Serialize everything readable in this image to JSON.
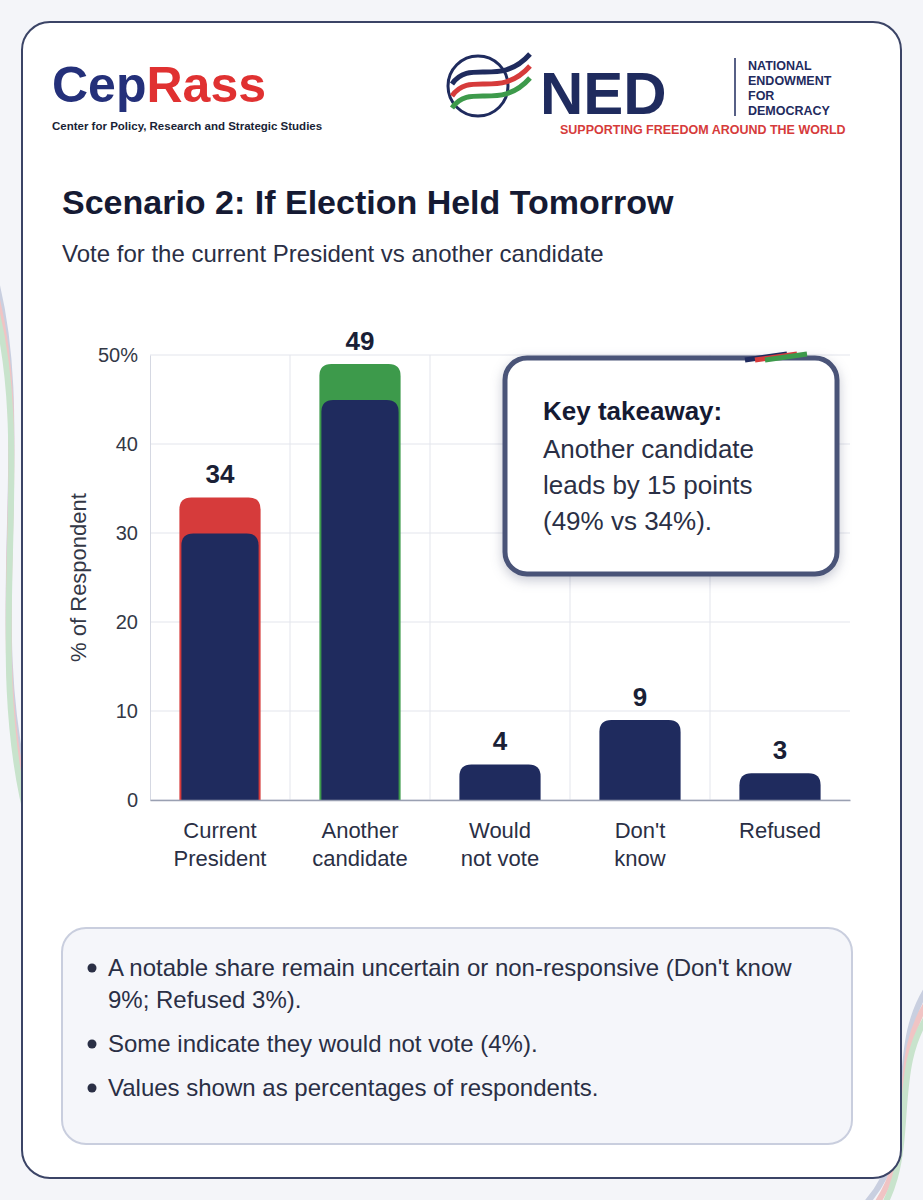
{
  "header": {
    "org_name": "CepRass",
    "org_full_name": "Center for Policy, Research and Strategic Studies",
    "partner_name": "NED",
    "partner_full_name": "NATIONAL ENDOWMENT FOR DEMOCRACY",
    "partner_tagline": "SUPPORTING FREEDOM AROUND THE WORLD"
  },
  "chart_data": {
    "type": "bar",
    "title": "Scenario 2: If Election Held Tomorrow",
    "subtitle": "Vote for the current President vs another candidate",
    "y_label": "% of Respondent",
    "categories": [
      "Current President",
      "Another candidate",
      "Would not vote",
      "Don't know",
      "Refused"
    ],
    "values": [
      34,
      49,
      4,
      9,
      3
    ],
    "colors": [
      "#d63b3b",
      "#3d9a4b",
      "#1f2b5e",
      "#1f2b5e",
      "#1f2b5e"
    ],
    "ylim": [
      0,
      50
    ],
    "yticks": [
      0,
      10,
      20,
      30,
      40,
      {
        "value": 50,
        "label": "50%"
      }
    ],
    "grid": true,
    "data_labels": true,
    "annotations": [
      {
        "title": "Key takeaway:",
        "text": "Another candidate leads by 15 points (49% vs 34%)."
      }
    ]
  },
  "notes": [
    "A notable share remain uncertain or non-responsive (Don't know 9%; Refused 3%).",
    "Some indicate they would not vote (4%).",
    "Values shown as percentages of respondents."
  ]
}
